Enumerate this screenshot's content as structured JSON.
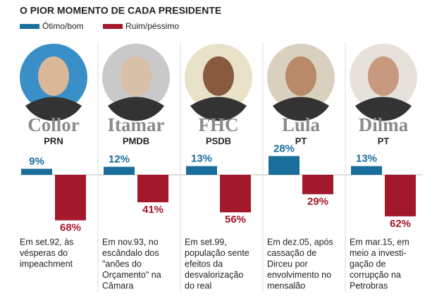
{
  "chart_data": {
    "type": "bar",
    "title": "O PIOR MOMENTO DE CADA PRESIDENTE",
    "categories": [
      "Collor",
      "Itamar",
      "FHC",
      "Lula",
      "Dilma"
    ],
    "parties": [
      "PRN",
      "PMDB",
      "PSDB",
      "PT",
      "PT"
    ],
    "notes": [
      [
        "Em set.92, às",
        "vésperas do",
        "impeachment"
      ],
      [
        "Em nov.93, no",
        "escândalo dos",
        "\"anões do",
        "Orçamento\" na",
        "Câmara"
      ],
      [
        "Em set.99,",
        "população sente",
        "efeitos da",
        "desvalorização",
        "do real"
      ],
      [
        "Em dez.05, após",
        "cassação de",
        "Dirceu por",
        "envolvimento no",
        "mensalão"
      ],
      [
        "Em mar.15, em",
        "meio a investi-",
        "gação de",
        "corrupção na",
        "Petrobras"
      ]
    ],
    "series": [
      {
        "name": "Ótimo/bom",
        "color": "#1a6e9c",
        "values": [
          9,
          12,
          13,
          28,
          13
        ],
        "value_labels": [
          "9%",
          "12%",
          "13%",
          "28%",
          "13%"
        ]
      },
      {
        "name": "Ruim/péssimo",
        "color": "#a3192b",
        "values": [
          68,
          41,
          56,
          29,
          62
        ],
        "value_labels": [
          "68%",
          "41%",
          "56%",
          "29%",
          "62%"
        ]
      }
    ]
  }
}
